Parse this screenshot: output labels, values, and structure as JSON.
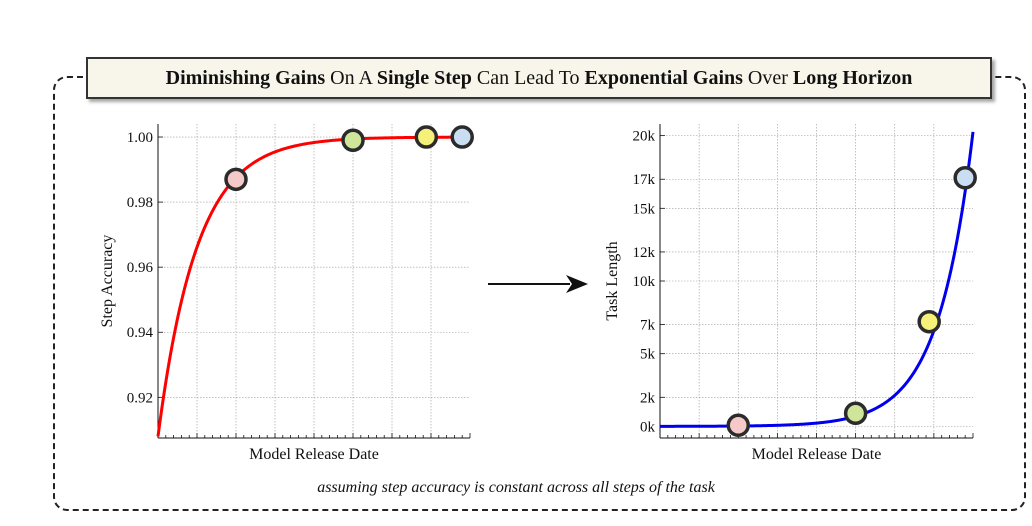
{
  "title": {
    "parts": [
      {
        "text": "Diminishing Gains",
        "bold": true
      },
      {
        "text": " On A ",
        "bold": false
      },
      {
        "text": "Single Step",
        "bold": true
      },
      {
        "text": " Can Lead To ",
        "bold": false
      },
      {
        "text": "Exponential Gains",
        "bold": true
      },
      {
        "text": " Over ",
        "bold": false
      },
      {
        "text": "Long Horizon",
        "bold": true
      }
    ]
  },
  "caption": "assuming step accuracy is constant across all steps of the task",
  "chart_data": [
    {
      "type": "line",
      "title": "",
      "xlabel": "Model Release Date",
      "ylabel": "Step Accuracy",
      "xlim": [
        0,
        1
      ],
      "ylim": [
        0.9075,
        1.004
      ],
      "yticks": [
        0.92,
        0.94,
        0.96,
        0.98,
        1.0
      ],
      "ytick_labels": [
        "0.92",
        "0.94",
        "0.96",
        "0.98",
        "1.00"
      ],
      "grid": true,
      "series": [
        {
          "name": "step accuracy",
          "color": "#ff0000",
          "function": "1 - 0.092*exp(-8*x)"
        }
      ],
      "points": [
        {
          "x": 0.25,
          "y": 0.987,
          "color": "#f6c9c9"
        },
        {
          "x": 0.625,
          "y": 0.999,
          "color": "#cfe59a"
        },
        {
          "x": 0.86,
          "y": 1.0,
          "color": "#f4f07a"
        },
        {
          "x": 0.975,
          "y": 1.0,
          "color": "#c9def3"
        }
      ]
    },
    {
      "type": "line",
      "title": "",
      "xlabel": "Model Release Date",
      "ylabel": "Task Length",
      "xlim": [
        0,
        1
      ],
      "ylim": [
        -800,
        20800
      ],
      "yticks": [
        0,
        2000,
        5000,
        7000,
        10000,
        12000,
        15000,
        17000,
        20000
      ],
      "ytick_labels": [
        "0k",
        "2k",
        "5k",
        "7k",
        "10k",
        "12k",
        "15k",
        "17k",
        "20k"
      ],
      "grid": true,
      "series": [
        {
          "name": "task length",
          "color": "#0000ee",
          "function": "2.5*exp(9*x)"
        }
      ],
      "points": [
        {
          "x": 0.25,
          "y": 77,
          "color": "#f6c9c9"
        },
        {
          "x": 0.625,
          "y": 900,
          "color": "#cfe59a"
        },
        {
          "x": 0.86,
          "y": 7200,
          "color": "#f4f07a"
        },
        {
          "x": 0.975,
          "y": 17100,
          "color": "#c9def3"
        }
      ]
    }
  ]
}
